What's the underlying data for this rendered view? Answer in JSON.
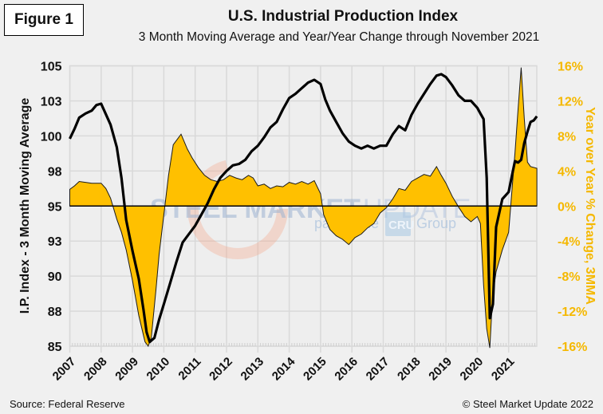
{
  "figure_label": "Figure 1",
  "source": "Source: Federal Reserve",
  "copyright": "© Steel Market Update 2022",
  "watermark": {
    "brand_bold": "STEEL MARKET",
    "brand_light": "UPDATE",
    "tagline_pre": "part of the",
    "tagline_logo": "CRU",
    "tagline_post": "Group"
  },
  "colors": {
    "area": "#ffc000",
    "line": "#000000",
    "right_axis": "#f5b800",
    "grid": "#d9d9d9"
  },
  "chart_data": {
    "type": "line+area",
    "title": "U.S. Industrial Production  Index",
    "subtitle": "3 Month Moving Average and Year/Year Change through November 2021",
    "ylabel": "I.P. Index - 3 Month Moving Average",
    "y2label": "Year over Year % Change, 3MMA",
    "ylim": [
      85,
      105
    ],
    "y2lim": [
      -16,
      16
    ],
    "yticks": [
      "85",
      "88",
      "90",
      "93",
      "95",
      "98",
      "100",
      "103",
      "105"
    ],
    "y2ticks": [
      "-16%",
      "-12%",
      "-8%",
      "-4%",
      "0%",
      "4%",
      "8%",
      "12%",
      "16%"
    ],
    "xticks": [
      "2007",
      "2008",
      "2009",
      "2010",
      "2011",
      "2012",
      "2013",
      "2014",
      "2015",
      "2016",
      "2017",
      "2018",
      "2019",
      "2020",
      "2021"
    ],
    "xlim": [
      2007.0,
      2021.95
    ],
    "grid": true,
    "series": [
      {
        "name": "I.P. Index 3MMA",
        "axis": "left",
        "kind": "line",
        "x": [
          2007.0,
          2007.15,
          2007.3,
          2007.5,
          2007.7,
          2007.85,
          2008.0,
          2008.1,
          2008.3,
          2008.5,
          2008.65,
          2008.8,
          2009.0,
          2009.2,
          2009.35,
          2009.45,
          2009.55,
          2009.7,
          2009.85,
          2010.0,
          2010.2,
          2010.4,
          2010.6,
          2010.8,
          2011.0,
          2011.2,
          2011.4,
          2011.6,
          2011.8,
          2012.0,
          2012.2,
          2012.4,
          2012.6,
          2012.8,
          2013.0,
          2013.2,
          2013.4,
          2013.6,
          2013.8,
          2014.0,
          2014.2,
          2014.4,
          2014.6,
          2014.8,
          2015.0,
          2015.15,
          2015.3,
          2015.5,
          2015.7,
          2015.9,
          2016.1,
          2016.3,
          2016.5,
          2016.7,
          2016.9,
          2017.1,
          2017.3,
          2017.5,
          2017.7,
          2017.9,
          2018.1,
          2018.3,
          2018.5,
          2018.7,
          2018.85,
          2019.0,
          2019.2,
          2019.4,
          2019.6,
          2019.8,
          2020.0,
          2020.1,
          2020.2,
          2020.3,
          2020.4,
          2020.5,
          2020.6,
          2020.8,
          2021.0,
          2021.1,
          2021.2,
          2021.3,
          2021.4,
          2021.5,
          2021.6,
          2021.7,
          2021.8,
          2021.9
        ],
        "values": [
          99.8,
          100.5,
          101.3,
          101.6,
          101.8,
          102.2,
          102.3,
          101.8,
          100.8,
          99.2,
          97.0,
          94.0,
          91.8,
          89.8,
          87.6,
          86.0,
          85.3,
          85.6,
          86.9,
          88.0,
          89.5,
          91.0,
          92.4,
          93.0,
          93.6,
          94.4,
          95.2,
          96.2,
          97.0,
          97.5,
          97.9,
          98.0,
          98.3,
          98.9,
          99.3,
          99.9,
          100.6,
          101.0,
          101.9,
          102.7,
          103.0,
          103.4,
          103.8,
          104.0,
          103.7,
          102.6,
          101.8,
          101.0,
          100.2,
          99.6,
          99.3,
          99.1,
          99.3,
          99.1,
          99.3,
          99.3,
          100.1,
          100.7,
          100.4,
          101.5,
          102.3,
          103.0,
          103.7,
          104.3,
          104.4,
          104.2,
          103.6,
          102.9,
          102.5,
          102.5,
          102.0,
          101.6,
          101.2,
          97.0,
          87.0,
          88.0,
          93.5,
          95.5,
          96.0,
          97.1,
          98.2,
          98.1,
          98.3,
          99.5,
          100.3,
          101.0,
          101.1,
          101.4
        ]
      },
      {
        "name": "Year over Year % Change, 3MMA",
        "axis": "right",
        "kind": "area",
        "x": [
          2007.0,
          2007.15,
          2007.3,
          2007.5,
          2007.7,
          2007.85,
          2008.0,
          2008.15,
          2008.3,
          2008.5,
          2008.65,
          2008.8,
          2009.0,
          2009.2,
          2009.4,
          2009.5,
          2009.6,
          2009.75,
          2009.85,
          2010.0,
          2010.15,
          2010.3,
          2010.55,
          2010.75,
          2010.9,
          2011.1,
          2011.3,
          2011.5,
          2011.7,
          2011.9,
          2012.1,
          2012.3,
          2012.5,
          2012.7,
          2012.85,
          2013.0,
          2013.2,
          2013.4,
          2013.6,
          2013.8,
          2014.0,
          2014.2,
          2014.4,
          2014.6,
          2014.8,
          2015.0,
          2015.1,
          2015.3,
          2015.5,
          2015.7,
          2015.9,
          2016.1,
          2016.3,
          2016.5,
          2016.7,
          2016.9,
          2017.1,
          2017.3,
          2017.5,
          2017.7,
          2017.9,
          2018.1,
          2018.3,
          2018.5,
          2018.7,
          2018.85,
          2019.0,
          2019.2,
          2019.4,
          2019.6,
          2019.8,
          2020.0,
          2020.1,
          2020.2,
          2020.3,
          2020.4,
          2020.45,
          2020.5,
          2020.6,
          2020.8,
          2021.0,
          2021.1,
          2021.2,
          2021.3,
          2021.4,
          2021.5,
          2021.6,
          2021.7,
          2021.9
        ],
        "values": [
          1.9,
          2.3,
          2.8,
          2.7,
          2.6,
          2.6,
          2.6,
          2.0,
          0.9,
          -1.5,
          -3.0,
          -5.0,
          -8.5,
          -12.5,
          -15.5,
          -16.0,
          -15.0,
          -9.5,
          -5.5,
          -1.0,
          3.5,
          7.0,
          8.2,
          6.5,
          5.5,
          4.4,
          3.5,
          3.0,
          2.8,
          3.0,
          3.5,
          3.2,
          3.0,
          3.5,
          3.2,
          2.3,
          2.5,
          2.0,
          2.3,
          2.2,
          2.7,
          2.5,
          2.8,
          2.5,
          2.9,
          1.4,
          -1.0,
          -2.7,
          -3.4,
          -3.8,
          -4.4,
          -3.6,
          -3.2,
          -2.5,
          -2.0,
          -0.8,
          -0.2,
          0.8,
          2.0,
          1.8,
          2.8,
          3.2,
          3.6,
          3.4,
          4.5,
          3.5,
          2.6,
          1.1,
          -0.1,
          -1.2,
          -1.8,
          -1.2,
          -2.0,
          -9.0,
          -14.0,
          -16.2,
          -12.8,
          -10.0,
          -7.5,
          -5.0,
          -3.0,
          1.5,
          6.0,
          11.0,
          15.8,
          10.0,
          5.0,
          4.5,
          4.3
        ]
      }
    ]
  }
}
